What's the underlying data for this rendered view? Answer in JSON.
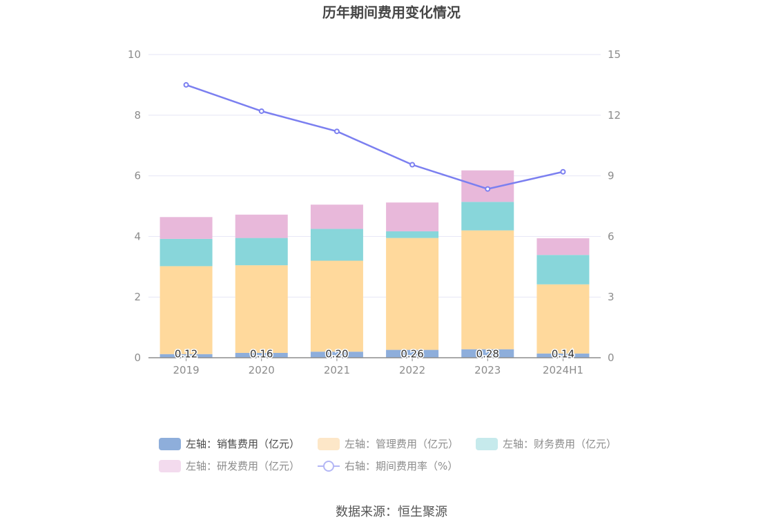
{
  "chart_data": {
    "type": "bar",
    "title": "历年期间费用变化情况",
    "categories": [
      "2019",
      "2020",
      "2021",
      "2022",
      "2023",
      "2024H1"
    ],
    "y_left": {
      "ylim": [
        0,
        10
      ],
      "ticks": [
        0,
        2,
        4,
        6,
        8,
        10
      ]
    },
    "y_right": {
      "ylim": [
        0,
        15
      ],
      "ticks": [
        0,
        3,
        6,
        9,
        12,
        15
      ]
    },
    "series": [
      {
        "name": "左轴：销售费用（亿元）",
        "type": "bar",
        "axis": "left",
        "color": "#8eaedb",
        "values": [
          0.12,
          0.16,
          0.2,
          0.26,
          0.28,
          0.14
        ],
        "labels": [
          "0.12",
          "0.16",
          "0.20",
          "0.26",
          "0.28",
          "0.14"
        ]
      },
      {
        "name": "左轴：管理费用（亿元）",
        "type": "bar",
        "axis": "left",
        "color": "#ffd99c",
        "values": [
          2.9,
          2.89,
          3.0,
          3.69,
          3.92,
          2.28
        ]
      },
      {
        "name": "左轴：财务费用（亿元）",
        "type": "bar",
        "axis": "left",
        "color": "#88d6da",
        "values": [
          0.9,
          0.9,
          1.05,
          0.22,
          0.94,
          0.97
        ]
      },
      {
        "name": "左轴：研发费用（亿元）",
        "type": "bar",
        "axis": "left",
        "color": "#e8b8da",
        "values": [
          0.72,
          0.77,
          0.8,
          0.95,
          1.04,
          0.55
        ]
      },
      {
        "name": "右轴：期间费用率（%）",
        "type": "line",
        "axis": "right",
        "color": "#7b7ff0",
        "values": [
          13.5,
          12.2,
          11.2,
          9.55,
          8.35,
          9.2
        ]
      }
    ],
    "legend_position": "bottom",
    "grid": true
  },
  "source_text": "数据来源：恒生聚源"
}
